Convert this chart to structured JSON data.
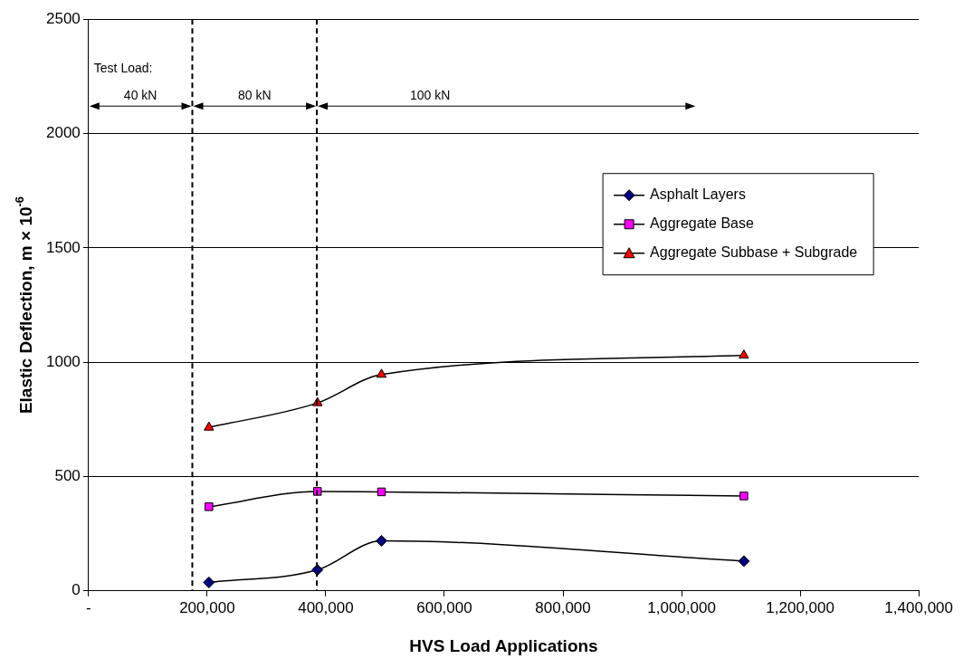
{
  "chart_data": {
    "type": "line",
    "xlabel": "HVS Load Applications",
    "ylabel": "Elastic Deflection, m × 10$^{-6}$",
    "xlim": [
      0,
      1400000
    ],
    "xticks": [
      {
        "value": 0,
        "label": "-"
      },
      {
        "value": 200000,
        "label": "200,000"
      },
      {
        "value": 400000,
        "label": "400,000"
      },
      {
        "value": 600000,
        "label": "600,000"
      },
      {
        "value": 800000,
        "label": "800,000"
      },
      {
        "value": 1000000,
        "label": "1,000,000"
      },
      {
        "value": 1200000,
        "label": "1,200,000"
      },
      {
        "value": 1400000,
        "label": "1,400,000"
      }
    ],
    "ylim": [
      0,
      2500
    ],
    "yticks": [
      0,
      500,
      1000,
      1500,
      2000,
      2500
    ],
    "grid": "y",
    "legend": "top right",
    "line_style": "solid",
    "x": [
      203000,
      386000,
      494000,
      1105000
    ],
    "series": [
      {
        "name": "Asphalt Layers",
        "color": "#000080",
        "marker": "diamond",
        "values": [
          37,
          92,
          219,
          130
        ]
      },
      {
        "name": "Aggregate Base",
        "color": "#ff00ff",
        "marker": "square",
        "values": [
          368,
          435,
          433,
          415
        ]
      },
      {
        "name": "Aggregate Subbase + Subgrade",
        "color": "#ff0000",
        "marker": "triangle",
        "values": [
          715,
          822,
          946,
          1030
        ]
      }
    ],
    "ref_lines": [
      {
        "axis": "x",
        "value": 175000,
        "line_style": "dashed",
        "color": "#000000"
      },
      {
        "axis": "x",
        "value": 385000,
        "line_style": "dashed",
        "color": "#000000"
      }
    ],
    "annotations": [
      "Test Load:",
      "40 kN",
      "80 kN",
      "100 kN"
    ]
  }
}
